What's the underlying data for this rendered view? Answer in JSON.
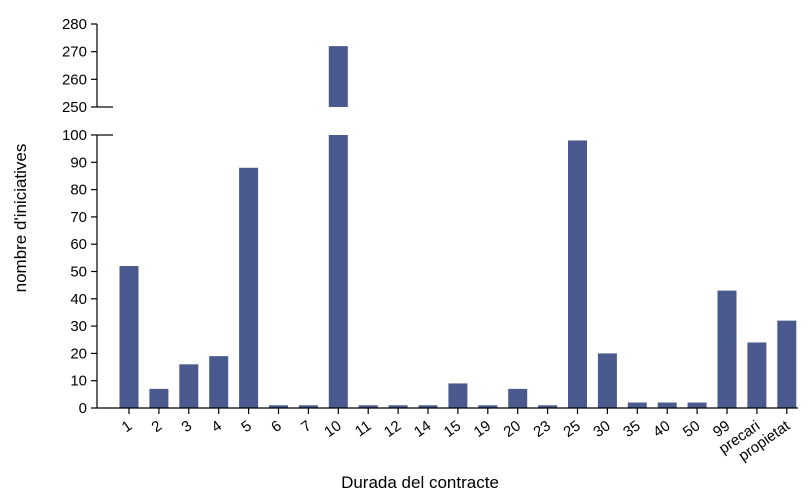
{
  "chart_data": {
    "type": "bar",
    "xlabel": "Durada del contracte",
    "ylabel": "nombre d'iniciatives",
    "categories": [
      "1",
      "2",
      "3",
      "4",
      "5",
      "6",
      "7",
      "10",
      "11",
      "12",
      "14",
      "15",
      "19",
      "20",
      "23",
      "25",
      "30",
      "35",
      "40",
      "50",
      "99",
      "precari",
      "propietat"
    ],
    "values": [
      52,
      7,
      16,
      19,
      88,
      1,
      1,
      272,
      1,
      1,
      1,
      9,
      1,
      7,
      1,
      98,
      20,
      2,
      2,
      2,
      43,
      24,
      32
    ],
    "y_axis_break": {
      "lower_range": [
        0,
        100
      ],
      "upper_range": [
        250,
        280
      ]
    },
    "y_ticks_lower": [
      "0",
      "10",
      "20",
      "30",
      "40",
      "50",
      "60",
      "70",
      "80",
      "90",
      "100"
    ],
    "y_ticks_upper": [
      "250",
      "260",
      "270",
      "280"
    ],
    "bar_color": "#4a5a8f",
    "grid": false,
    "legend": "none"
  }
}
